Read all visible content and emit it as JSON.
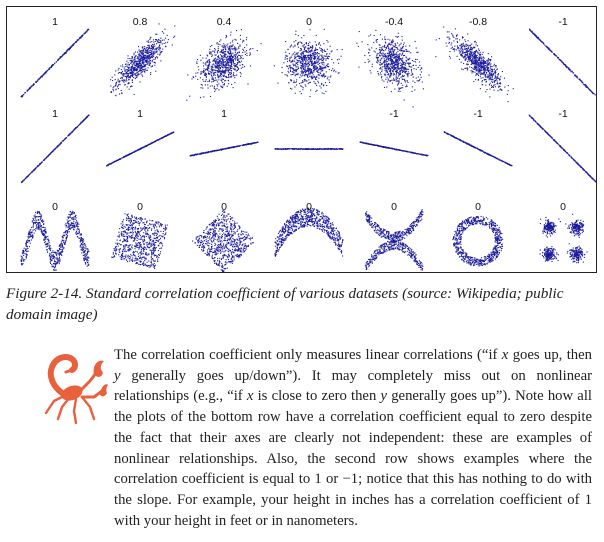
{
  "figure": {
    "rows": [
      {
        "labels": [
          "1",
          "0.8",
          "0.4",
          "0",
          "-0.4",
          "-0.8",
          "-1"
        ],
        "panels": [
          {
            "kind": "corr",
            "r": 1,
            "spread": 1.0
          },
          {
            "kind": "corr",
            "r": 0.8,
            "spread": 1.0
          },
          {
            "kind": "corr",
            "r": 0.4,
            "spread": 1.0
          },
          {
            "kind": "corr",
            "r": 0,
            "spread": 1.0
          },
          {
            "kind": "corr",
            "r": -0.4,
            "spread": 1.0
          },
          {
            "kind": "corr",
            "r": -0.8,
            "spread": 1.0
          },
          {
            "kind": "corr",
            "r": -1,
            "spread": 1.0
          }
        ]
      },
      {
        "labels": [
          "1",
          "1",
          "1",
          "",
          "-1",
          "-1",
          "-1"
        ],
        "panels": [
          {
            "kind": "slope",
            "slope": 1
          },
          {
            "kind": "slope",
            "slope": 0.5
          },
          {
            "kind": "slope",
            "slope": 0.2
          },
          {
            "kind": "slope",
            "slope": 0
          },
          {
            "kind": "slope",
            "slope": -0.2
          },
          {
            "kind": "slope",
            "slope": -0.5
          },
          {
            "kind": "slope",
            "slope": -1
          }
        ]
      },
      {
        "labels": [
          "0",
          "0",
          "0",
          "0",
          "0",
          "0",
          "0"
        ],
        "panels": [
          {
            "kind": "wave"
          },
          {
            "kind": "rotsquare"
          },
          {
            "kind": "diamond"
          },
          {
            "kind": "parabola"
          },
          {
            "kind": "cross"
          },
          {
            "kind": "ring"
          },
          {
            "kind": "clusters"
          }
        ]
      }
    ],
    "point_color": "#1a1a9c"
  },
  "caption": "Figure 2-14. Standard correlation coefficient of various datasets (source: Wikipedia; public domain image)",
  "tip": {
    "icon": "scorpion-icon",
    "icon_color": "#e8603c",
    "p1": "The correlation coefficient only measures linear correlations (“if ",
    "x1": "x",
    "p2": " goes up, then ",
    "y1": "y",
    "p3": " generally goes up/down”). It may completely miss out on nonlinear relationships (e.g., “if ",
    "x2": "x",
    "p4": " is close to zero then ",
    "y2": "y",
    "p5": " generally goes up”). Note how all the plots of the bottom row have a correlation coefficient equal to zero despite the fact that their axes are clearly not independent: these are examples of nonlinear relationships. Also, the second row shows examples where the correlation coefficient is equal to 1 or −1; notice that this has nothing to do with the slope. For example, your height in inches has a correlation coefficient of 1 with your height in feet or in nanometers."
  }
}
